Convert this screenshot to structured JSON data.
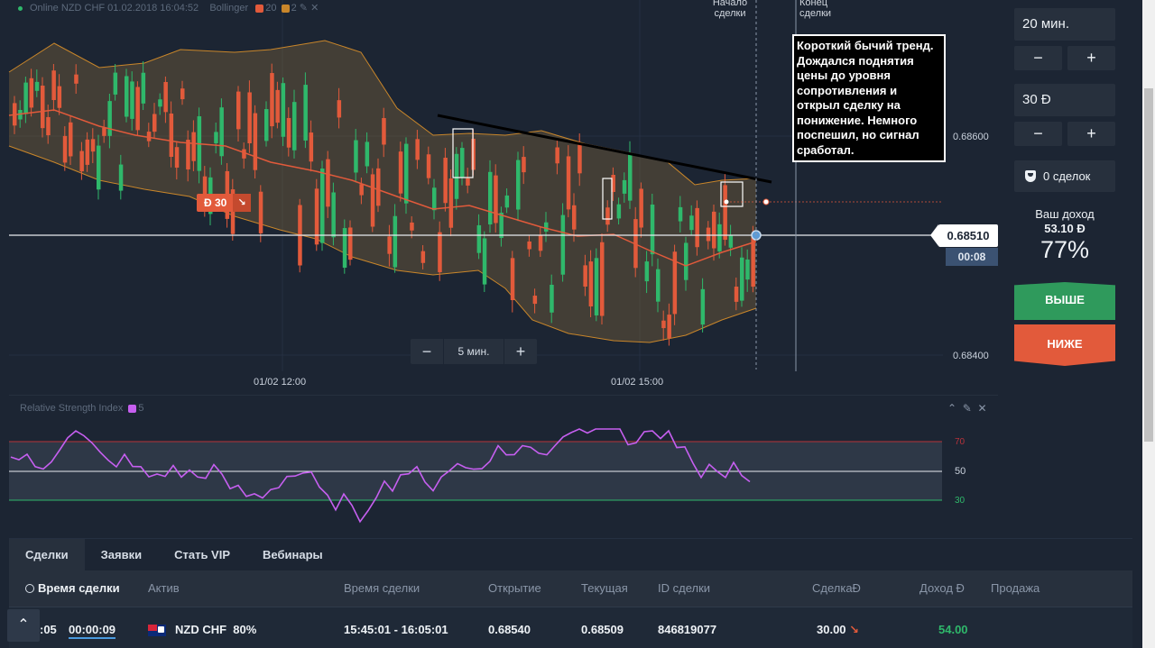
{
  "chart_header": {
    "asset": "Online NZD CHF 01.02.2018 16:04:52",
    "indicator": "Bollinger",
    "param1": "20",
    "param2": "2"
  },
  "markers": {
    "start": [
      "Начало",
      "сделки"
    ],
    "end": [
      "Конец",
      "сделки"
    ]
  },
  "note": "Короткий бычий тренд. Дождался поднятия цены до уровня сопротивления и открыл сделку на понижение. Немного поспешил, но сигнал сработал.",
  "price_labels": {
    "upper": "0.68600",
    "lower": "0.68400"
  },
  "current_price": "0.68510",
  "timer": "00:08",
  "trade_marker": "Ɖ 30",
  "time_labels": [
    "01/02 12:00",
    "01/02 15:00"
  ],
  "zoom": {
    "minus": "−",
    "label": "5 мин.",
    "plus": "+"
  },
  "right_panel": {
    "duration": "20 мин.",
    "amount": "30 Ɖ",
    "minus": "−",
    "plus": "+",
    "deals": "0 сделок",
    "income_label": "Ваш доход",
    "income_value": "53.10 Ɖ",
    "percent": "77%",
    "up": "ВЫШЕ",
    "down": "НИЖЕ"
  },
  "rsi": {
    "label": "Relative Strength Index",
    "period": "5",
    "levels": [
      "70",
      "50",
      "30"
    ]
  },
  "tabs": [
    "Сделки",
    "Заявки",
    "Стать VIP",
    "Вебинары"
  ],
  "table": {
    "headers": [
      "Время сделки",
      "Актив",
      "Время сделки",
      "Открытие",
      "Текущая",
      "ID сделки",
      "СделкаƉ",
      "Доход Ɖ",
      "Продажа"
    ],
    "row": {
      "time_left": ":05",
      "countdown": "00:00:09",
      "asset": "NZD CHF",
      "payout": "80%",
      "period": "15:45:01 - 16:05:01",
      "open": "0.68540",
      "current": "0.68509",
      "id": "846819077",
      "amount": "30.00",
      "income": "54.00"
    }
  },
  "colors": {
    "bull": "#2fb86b",
    "bear": "#e25a3b",
    "band": "#c9862a",
    "rsi": "#c65ff0"
  }
}
